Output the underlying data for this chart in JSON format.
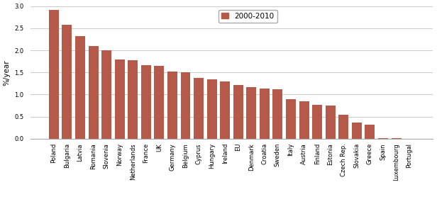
{
  "categories": [
    "Poland",
    "Bulgaria",
    "Latvia",
    "Romania",
    "Slovenia",
    "Norway",
    "Netherlands",
    "France",
    "UK",
    "Germany",
    "Belgium",
    "Cyprus",
    "Hungary",
    "Ireland",
    "EU",
    "Denmark",
    "Croatia",
    "Sweden",
    "Italy",
    "Austria",
    "Finland",
    "Estonia",
    "Czech Rep.",
    "Slovakia",
    "Greece",
    "Spain",
    "Luxembourg",
    "Portugal"
  ],
  "values": [
    2.92,
    2.58,
    2.32,
    2.1,
    2.0,
    1.8,
    1.78,
    1.67,
    1.65,
    1.52,
    1.51,
    1.38,
    1.35,
    1.3,
    1.21,
    1.16,
    1.13,
    1.12,
    0.9,
    0.85,
    0.76,
    0.75,
    0.54,
    0.37,
    0.31,
    0.02,
    0.01,
    0.0
  ],
  "bar_color": "#b55a4a",
  "ylabel": "%/year",
  "legend_label": "2000-2010",
  "legend_color": "#b55a4a",
  "ylim": [
    0,
    3.0
  ],
  "yticks": [
    0.0,
    0.5,
    1.0,
    1.5,
    2.0,
    2.5,
    3.0
  ],
  "background_color": "#ffffff",
  "grid_color": "#cccccc",
  "bar_width": 0.75,
  "tick_fontsize": 6.0,
  "ylabel_fontsize": 7.5,
  "legend_fontsize": 7.5
}
